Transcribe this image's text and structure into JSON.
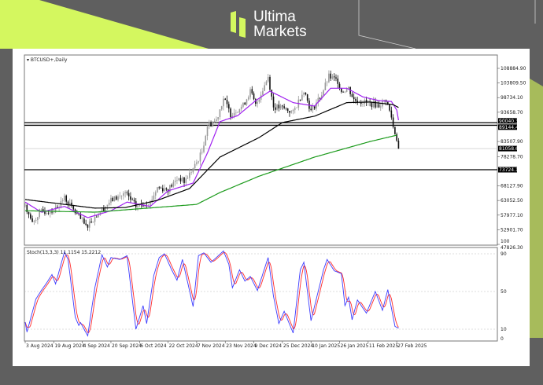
{
  "brand": {
    "line1": "Ultima",
    "line2": "Markets",
    "accent": "#d4f75f",
    "background": "#5f5f5f"
  },
  "chart_data": {
    "type": "candlestick",
    "symbol_label": "BTCUSD+,Daily",
    "price_ticks": [
      "108884.90",
      "103809.50",
      "98734.10",
      "93658.70",
      "83507.90",
      "78278.70",
      "68127.90",
      "63052.50",
      "57977.10",
      "52901.70",
      "47826.30"
    ],
    "price_tick_values": [
      108884.9,
      103809.5,
      98734.1,
      93658.7,
      83507.9,
      78278.7,
      68127.9,
      63052.5,
      57977.1,
      52901.7,
      47826.3
    ],
    "ylim": [
      47826.3,
      108884.9
    ],
    "horizontal_levels": [
      {
        "label": "90040.32",
        "value": 90040.32,
        "color": "#000000"
      },
      {
        "label": "89144.47",
        "value": 89144.47,
        "color": "#000000"
      },
      {
        "label": "81058.69",
        "value": 81058.69,
        "color": "#c8c8c8"
      },
      {
        "label": "73724.12",
        "value": 73724.12,
        "color": "#000000"
      }
    ],
    "date_ticks": [
      "3 Aug 2024",
      "19 Aug 2024",
      "4 Sep 2024",
      "20 Sep 2024",
      "6 Oct 2024",
      "22 Oct 2024",
      "7 Nov 2024",
      "23 Nov 2024",
      "9 Dec 2024",
      "25 Dec 2024",
      "10 Jan 2025",
      "26 Jan 2025",
      "11 Feb 2025",
      "27 Feb 2025"
    ],
    "date_tick_dates": [
      "2024-08-03",
      "2024-08-19",
      "2024-09-04",
      "2024-09-20",
      "2024-10-06",
      "2024-10-22",
      "2024-11-07",
      "2024-11-23",
      "2024-12-09",
      "2024-12-25",
      "2025-01-10",
      "2025-01-26",
      "2025-02-11",
      "2025-02-27"
    ],
    "close": [
      [
        "2024-08-03",
        61500
      ],
      [
        "2024-08-07",
        55000
      ],
      [
        "2024-08-11",
        59000
      ],
      [
        "2024-08-19",
        59500
      ],
      [
        "2024-08-25",
        64000
      ],
      [
        "2024-08-31",
        59000
      ],
      [
        "2024-09-06",
        54000
      ],
      [
        "2024-09-12",
        58000
      ],
      [
        "2024-09-20",
        63000
      ],
      [
        "2024-09-28",
        65500
      ],
      [
        "2024-10-04",
        61000
      ],
      [
        "2024-10-12",
        62500
      ],
      [
        "2024-10-16",
        67500
      ],
      [
        "2024-10-22",
        67000
      ],
      [
        "2024-10-28",
        71000
      ],
      [
        "2024-10-31",
        69500
      ],
      [
        "2024-11-06",
        75000
      ],
      [
        "2024-11-10",
        80000
      ],
      [
        "2024-11-13",
        89000
      ],
      [
        "2024-11-18",
        91000
      ],
      [
        "2024-11-22",
        98500
      ],
      [
        "2024-11-26",
        93000
      ],
      [
        "2024-12-03",
        96000
      ],
      [
        "2024-12-07",
        101000
      ],
      [
        "2024-12-10",
        96000
      ],
      [
        "2024-12-17",
        106000
      ],
      [
        "2024-12-20",
        95500
      ],
      [
        "2024-12-26",
        95000
      ],
      [
        "2024-12-31",
        93500
      ],
      [
        "2025-01-06",
        101500
      ],
      [
        "2025-01-10",
        94000
      ],
      [
        "2025-01-16",
        100000
      ],
      [
        "2025-01-20",
        106000
      ],
      [
        "2025-01-25",
        104500
      ],
      [
        "2025-01-27",
        101000
      ],
      [
        "2025-01-31",
        102000
      ],
      [
        "2025-02-03",
        98000
      ],
      [
        "2025-02-10",
        97000
      ],
      [
        "2025-02-17",
        96000
      ],
      [
        "2025-02-21",
        98000
      ],
      [
        "2025-02-24",
        92000
      ],
      [
        "2025-02-25",
        88500
      ],
      [
        "2025-02-27",
        84500
      ],
      [
        "2025-02-28",
        81000
      ]
    ],
    "moving_averages": [
      {
        "color": "#a020f0",
        "points": [
          [
            "2024-08-03",
            62500
          ],
          [
            "2024-08-12",
            59000
          ],
          [
            "2024-08-25",
            61000
          ],
          [
            "2024-09-07",
            57100
          ],
          [
            "2024-09-20",
            59500
          ],
          [
            "2024-09-29",
            62500
          ],
          [
            "2024-10-12",
            61000
          ],
          [
            "2024-10-22",
            66400
          ],
          [
            "2024-11-05",
            69100
          ],
          [
            "2024-11-13",
            79500
          ],
          [
            "2024-11-20",
            90400
          ],
          [
            "2024-11-30",
            92500
          ],
          [
            "2024-12-10",
            97700
          ],
          [
            "2024-12-12",
            98500
          ],
          [
            "2024-12-18",
            101000
          ],
          [
            "2024-12-31",
            97000
          ],
          [
            "2025-01-12",
            95800
          ],
          [
            "2025-01-21",
            102000
          ],
          [
            "2025-01-30",
            102000
          ],
          [
            "2025-02-08",
            99000
          ],
          [
            "2025-02-17",
            97700
          ],
          [
            "2025-02-24",
            97400
          ],
          [
            "2025-02-27",
            94400
          ],
          [
            "2025-02-28",
            90900
          ]
        ]
      },
      {
        "color": "#000000",
        "points": [
          [
            "2024-08-03",
            63400
          ],
          [
            "2024-09-11",
            60400
          ],
          [
            "2024-09-28",
            60600
          ],
          [
            "2024-10-16",
            63100
          ],
          [
            "2024-11-03",
            67200
          ],
          [
            "2024-11-20",
            78100
          ],
          [
            "2024-12-12",
            84900
          ],
          [
            "2024-12-25",
            90100
          ],
          [
            "2025-01-12",
            92300
          ],
          [
            "2025-01-30",
            97000
          ],
          [
            "2025-02-12",
            97200
          ],
          [
            "2025-02-25",
            96300
          ],
          [
            "2025-02-28",
            95300
          ]
        ]
      },
      {
        "color": "#1a9a1a",
        "points": [
          [
            "2024-08-03",
            59500
          ],
          [
            "2024-09-11",
            59000
          ],
          [
            "2024-11-07",
            61700
          ],
          [
            "2024-11-20",
            65800
          ],
          [
            "2024-12-12",
            71500
          ],
          [
            "2025-01-12",
            78100
          ],
          [
            "2025-02-12",
            83500
          ],
          [
            "2025-02-27",
            85700
          ]
        ]
      }
    ],
    "stochastic": {
      "label": "Stoch(13,3,3) 11.1154 15.2212",
      "ticks": [
        "100",
        "90",
        "50",
        "10",
        "0"
      ],
      "tick_values": [
        100,
        90,
        50,
        10,
        0
      ],
      "levels": [
        90,
        50,
        10
      ],
      "main_color": "#3b3bff",
      "signal_color": "#ff2a2a",
      "main": [
        [
          "2024-08-03",
          17.5
        ],
        [
          "2024-08-04",
          7
        ],
        [
          "2024-08-09",
          42
        ],
        [
          "2024-08-12",
          51
        ],
        [
          "2024-08-15",
          59
        ],
        [
          "2024-08-18",
          68
        ],
        [
          "2024-08-20",
          58
        ],
        [
          "2024-08-25",
          92
        ],
        [
          "2024-08-27",
          84
        ],
        [
          "2024-08-31",
          23
        ],
        [
          "2024-09-02",
          14
        ],
        [
          "2024-09-03",
          17
        ],
        [
          "2024-09-07",
          3
        ],
        [
          "2024-09-11",
          54
        ],
        [
          "2024-09-15",
          89
        ],
        [
          "2024-09-18",
          76
        ],
        [
          "2024-09-20",
          86
        ],
        [
          "2024-09-25",
          84
        ],
        [
          "2024-09-29",
          88
        ],
        [
          "2024-10-04",
          10
        ],
        [
          "2024-10-08",
          35
        ],
        [
          "2024-10-10",
          16
        ],
        [
          "2024-10-14",
          67
        ],
        [
          "2024-10-17",
          86
        ],
        [
          "2024-10-20",
          90
        ],
        [
          "2024-10-24",
          73
        ],
        [
          "2024-10-27",
          62
        ],
        [
          "2024-10-30",
          84
        ],
        [
          "2024-11-03",
          51
        ],
        [
          "2024-11-05",
          34
        ],
        [
          "2024-11-08",
          88
        ],
        [
          "2024-11-11",
          91
        ],
        [
          "2024-11-15",
          81
        ],
        [
          "2024-11-18",
          86
        ],
        [
          "2024-11-22",
          93
        ],
        [
          "2024-11-25",
          79
        ],
        [
          "2024-11-27",
          54
        ],
        [
          "2024-12-01",
          73
        ],
        [
          "2024-12-04",
          61
        ],
        [
          "2024-12-07",
          66
        ],
        [
          "2024-12-11",
          51
        ],
        [
          "2024-12-17",
          86
        ],
        [
          "2024-12-20",
          45
        ],
        [
          "2024-12-23",
          16
        ],
        [
          "2024-12-26",
          29
        ],
        [
          "2024-12-31",
          6
        ],
        [
          "2025-01-04",
          73
        ],
        [
          "2025-01-06",
          81
        ],
        [
          "2025-01-10",
          19
        ],
        [
          "2025-01-17",
          73
        ],
        [
          "2025-01-19",
          84
        ],
        [
          "2025-01-23",
          72
        ],
        [
          "2025-01-27",
          69
        ],
        [
          "2025-01-29",
          35
        ],
        [
          "2025-01-31",
          44
        ],
        [
          "2025-02-02",
          20
        ],
        [
          "2025-02-05",
          41
        ],
        [
          "2025-02-10",
          27
        ],
        [
          "2025-02-15",
          50
        ],
        [
          "2025-02-19",
          30
        ],
        [
          "2025-02-22",
          52
        ],
        [
          "2025-02-26",
          13
        ],
        [
          "2025-02-28",
          11.1154
        ]
      ],
      "ylim": [
        0,
        100
      ]
    },
    "grid": false
  }
}
